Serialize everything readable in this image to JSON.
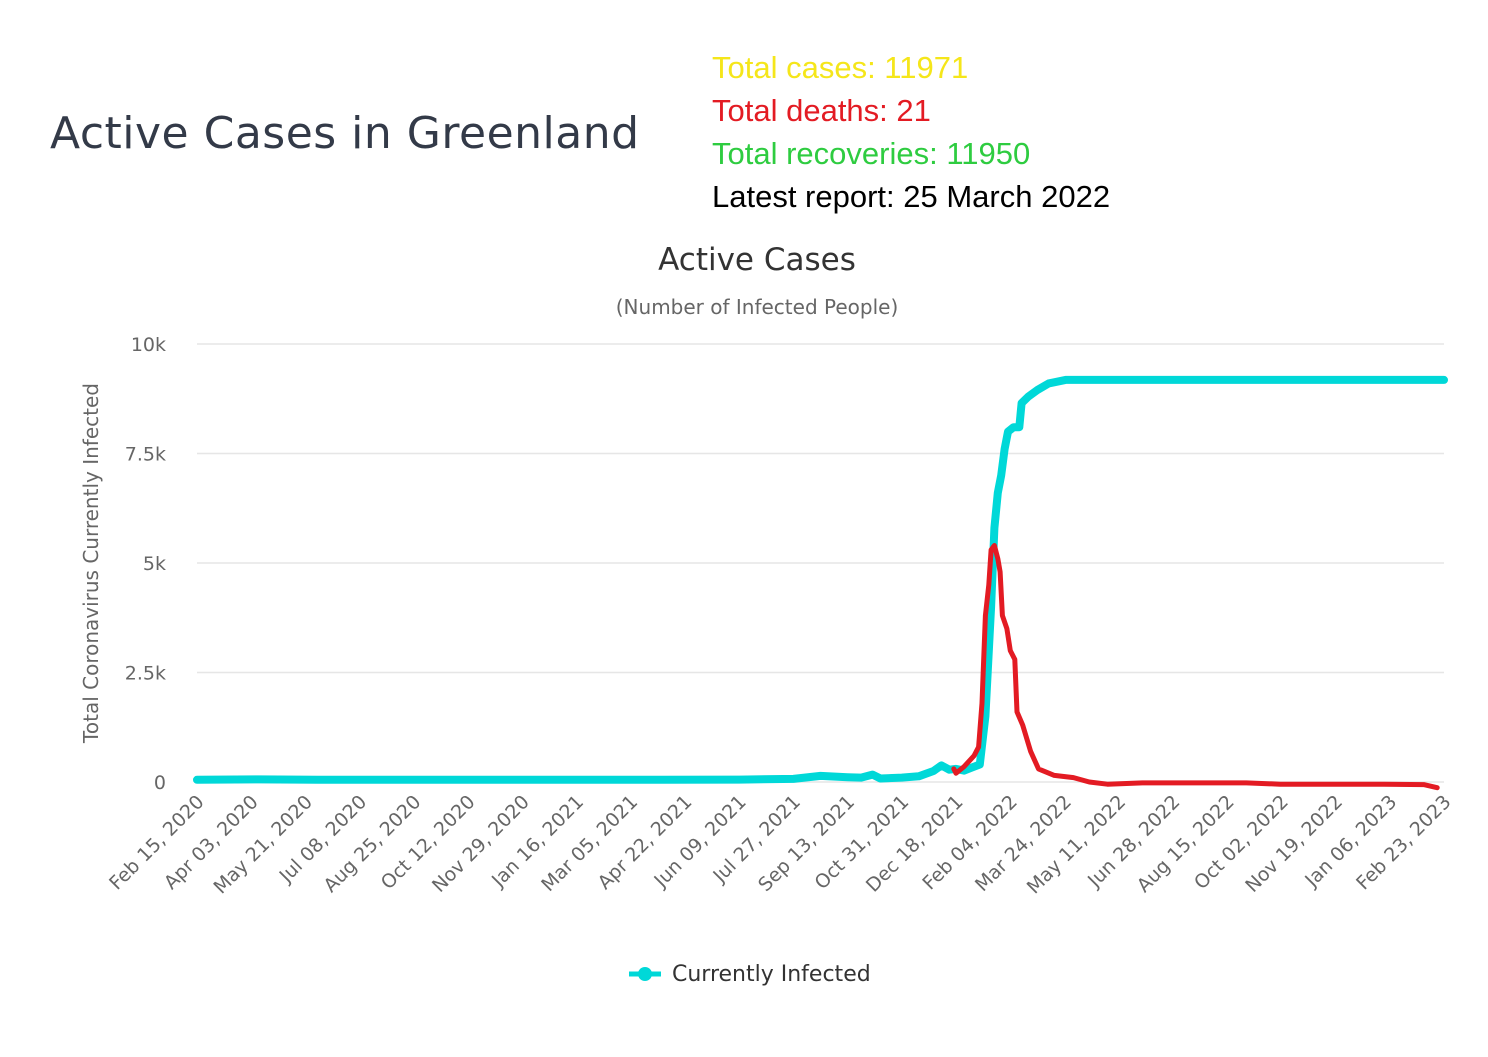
{
  "page": {
    "title": "Active Cases in Greenland"
  },
  "stats": {
    "total_cases": {
      "text": "Total cases: 11971",
      "color": "#f5e61a"
    },
    "total_deaths": {
      "text": "Total deaths: 21",
      "color": "#e31b23"
    },
    "total_recoveries": {
      "text": "Total recoveries: 11950",
      "color": "#2ecc40"
    },
    "latest_report": {
      "text": "Latest report: 25 March 2022",
      "color": "#000000"
    }
  },
  "chart_data": {
    "type": "line",
    "title": "Active Cases",
    "subtitle": "(Number of Infected People)",
    "ylabel": "Total Coronavirus Currently Infected",
    "xlabel": "",
    "ylim": [
      0,
      10000
    ],
    "yticks": [
      {
        "value": 0,
        "label": "0"
      },
      {
        "value": 2500,
        "label": "2.5k"
      },
      {
        "value": 5000,
        "label": "5k"
      },
      {
        "value": 7500,
        "label": "7.5k"
      },
      {
        "value": 10000,
        "label": "10k"
      }
    ],
    "grid": true,
    "legend_position": "bottom-center",
    "x_range": [
      "2020-02-15",
      "2023-02-23"
    ],
    "x_tick_labels": [
      "Feb 15, 2020",
      "Apr 03, 2020",
      "May 21, 2020",
      "Jul 08, 2020",
      "Aug 25, 2020",
      "Oct 12, 2020",
      "Nov 29, 2020",
      "Jan 16, 2021",
      "Mar 05, 2021",
      "Apr 22, 2021",
      "Jun 09, 2021",
      "Jul 27, 2021",
      "Sep 13, 2021",
      "Oct 31, 2021",
      "Dec 18, 2021",
      "Feb 04, 2022",
      "Mar 24, 2022",
      "May 11, 2022",
      "Jun 28, 2022",
      "Aug 15, 2022",
      "Oct 02, 2022",
      "Nov 19, 2022",
      "Jan 06, 2023",
      "Feb 23, 2023"
    ],
    "series": [
      {
        "name": "Currently Infected",
        "color": "#00d8d8",
        "points": [
          [
            "2020-02-15",
            50
          ],
          [
            "2020-04-10",
            60
          ],
          [
            "2020-06-01",
            50
          ],
          [
            "2020-09-01",
            50
          ],
          [
            "2021-01-01",
            50
          ],
          [
            "2021-04-01",
            50
          ],
          [
            "2021-06-09",
            55
          ],
          [
            "2021-07-27",
            70
          ],
          [
            "2021-08-20",
            140
          ],
          [
            "2021-09-13",
            110
          ],
          [
            "2021-09-25",
            100
          ],
          [
            "2021-10-05",
            170
          ],
          [
            "2021-10-12",
            80
          ],
          [
            "2021-10-31",
            100
          ],
          [
            "2021-11-15",
            130
          ],
          [
            "2021-11-28",
            250
          ],
          [
            "2021-12-05",
            380
          ],
          [
            "2021-12-12",
            280
          ],
          [
            "2021-12-18",
            300
          ],
          [
            "2021-12-25",
            260
          ],
          [
            "2022-01-01",
            330
          ],
          [
            "2022-01-08",
            400
          ],
          [
            "2022-01-13",
            1500
          ],
          [
            "2022-01-18",
            4000
          ],
          [
            "2022-01-21",
            5800
          ],
          [
            "2022-01-24",
            6600
          ],
          [
            "2022-01-27",
            7000
          ],
          [
            "2022-01-30",
            7600
          ],
          [
            "2022-02-02",
            8000
          ],
          [
            "2022-02-07",
            8100
          ],
          [
            "2022-02-12",
            8100
          ],
          [
            "2022-02-14",
            8650
          ],
          [
            "2022-02-20",
            8800
          ],
          [
            "2022-02-28",
            8950
          ],
          [
            "2022-03-10",
            9100
          ],
          [
            "2022-03-25",
            9180
          ],
          [
            "2022-05-01",
            9180
          ],
          [
            "2023-02-23",
            9180
          ]
        ]
      }
    ],
    "overlay_series": [
      {
        "color": "#e31b23",
        "points": [
          [
            "2021-12-16",
            300
          ],
          [
            "2021-12-18",
            200
          ],
          [
            "2021-12-25",
            350
          ],
          [
            "2022-01-03",
            600
          ],
          [
            "2022-01-07",
            800
          ],
          [
            "2022-01-10",
            1800
          ],
          [
            "2022-01-13",
            3800
          ],
          [
            "2022-01-16",
            4500
          ],
          [
            "2022-01-18",
            5300
          ],
          [
            "2022-01-21",
            5400
          ],
          [
            "2022-01-24",
            5100
          ],
          [
            "2022-01-26",
            4800
          ],
          [
            "2022-01-28",
            3800
          ],
          [
            "2022-02-01",
            3500
          ],
          [
            "2022-02-04",
            3000
          ],
          [
            "2022-02-08",
            2800
          ],
          [
            "2022-02-10",
            1600
          ],
          [
            "2022-02-15",
            1300
          ],
          [
            "2022-02-22",
            700
          ],
          [
            "2022-03-01",
            300
          ],
          [
            "2022-03-15",
            150
          ],
          [
            "2022-04-01",
            100
          ],
          [
            "2022-04-15",
            0
          ],
          [
            "2022-05-01",
            -50
          ],
          [
            "2022-06-01",
            -20
          ],
          [
            "2022-09-01",
            -20
          ],
          [
            "2022-10-01",
            -50
          ],
          [
            "2023-01-01",
            -50
          ],
          [
            "2023-02-05",
            -60
          ],
          [
            "2023-02-17",
            -130
          ]
        ]
      }
    ]
  }
}
